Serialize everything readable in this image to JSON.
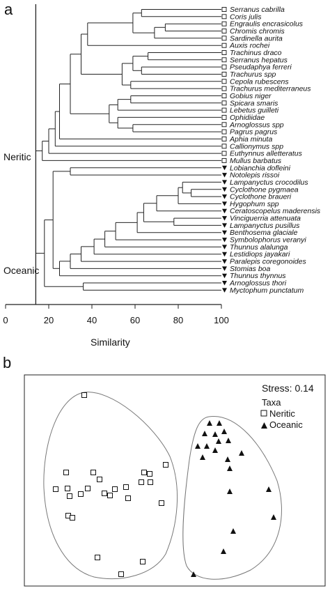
{
  "figure_a": {
    "panel_label": "a",
    "axis": {
      "title": "Similarity",
      "ticks": [
        "0",
        "20",
        "40",
        "60",
        "80",
        "100"
      ]
    },
    "group_labels": {
      "neritic": "Neritic",
      "oceanic": "Oceanic"
    },
    "taxa": [
      {
        "name": "Serranus cabrilla",
        "group": "Neritic"
      },
      {
        "name": "Coris julis",
        "group": "Neritic"
      },
      {
        "name": "Engraulis encrasicolus",
        "group": "Neritic"
      },
      {
        "name": "Chromis chromis",
        "group": "Neritic"
      },
      {
        "name": "Sardinella aurita",
        "group": "Neritic"
      },
      {
        "name": "Auxis rochei",
        "group": "Neritic"
      },
      {
        "name": "Trachinus draco",
        "group": "Neritic"
      },
      {
        "name": "Serranus hepatus",
        "group": "Neritic"
      },
      {
        "name": "Pseudaphya ferreri",
        "group": "Neritic"
      },
      {
        "name": "Trachurus spp",
        "group": "Neritic"
      },
      {
        "name": "Cepola rubescens",
        "group": "Neritic"
      },
      {
        "name": "Trachurus mediterraneus",
        "group": "Neritic"
      },
      {
        "name": "Gobius niger",
        "group": "Neritic"
      },
      {
        "name": "Spicara smaris",
        "group": "Neritic"
      },
      {
        "name": "Lebetus guilleti",
        "group": "Neritic"
      },
      {
        "name": "Ophidiidae",
        "group": "Neritic"
      },
      {
        "name": "Arnoglossus spp",
        "group": "Neritic"
      },
      {
        "name": "Pagrus pagrus",
        "group": "Neritic"
      },
      {
        "name": "Aphia minuta",
        "group": "Neritic"
      },
      {
        "name": "Callionymus spp",
        "group": "Neritic"
      },
      {
        "name": "Euthynnus alletteratus",
        "group": "Neritic"
      },
      {
        "name": "Mullus barbatus",
        "group": "Neritic"
      },
      {
        "name": "Lobianchia dofleini",
        "group": "Oceanic"
      },
      {
        "name": "Notolepis rissoi",
        "group": "Oceanic"
      },
      {
        "name": "Lampanyctus crocodilus",
        "group": "Oceanic"
      },
      {
        "name": "Cyclothone pygmaea",
        "group": "Oceanic"
      },
      {
        "name": "Cyclothone braueri",
        "group": "Oceanic"
      },
      {
        "name": "Hygophum spp",
        "group": "Oceanic"
      },
      {
        "name": "Ceratoscopelus maderensis",
        "group": "Oceanic"
      },
      {
        "name": "Vinciguerria attenuata",
        "group": "Oceanic"
      },
      {
        "name": "Lampanyctus pusillus",
        "group": "Oceanic"
      },
      {
        "name": "Benthosema glaciale",
        "group": "Oceanic"
      },
      {
        "name": "Symbolophorus veranyi",
        "group": "Oceanic"
      },
      {
        "name": "Thunnus alalunga",
        "group": "Oceanic"
      },
      {
        "name": "Lestidiops jayakari",
        "group": "Oceanic"
      },
      {
        "name": "Paralepis coregonoides",
        "group": "Oceanic"
      },
      {
        "name": "Stomias boa",
        "group": "Oceanic"
      },
      {
        "name": "Thunnus thynnus",
        "group": "Oceanic"
      },
      {
        "name": "Arnoglossus thori",
        "group": "Oceanic"
      },
      {
        "name": "Myctophum punctatum",
        "group": "Oceanic"
      }
    ]
  },
  "figure_b": {
    "panel_label": "b",
    "stress_text": "Stress: 0.14",
    "legend": {
      "title": "Taxa",
      "items": [
        "Neritic",
        "Oceanic"
      ]
    }
  },
  "colors": {
    "line": "#222222",
    "hull": "#777777",
    "marker": "#111111"
  }
}
